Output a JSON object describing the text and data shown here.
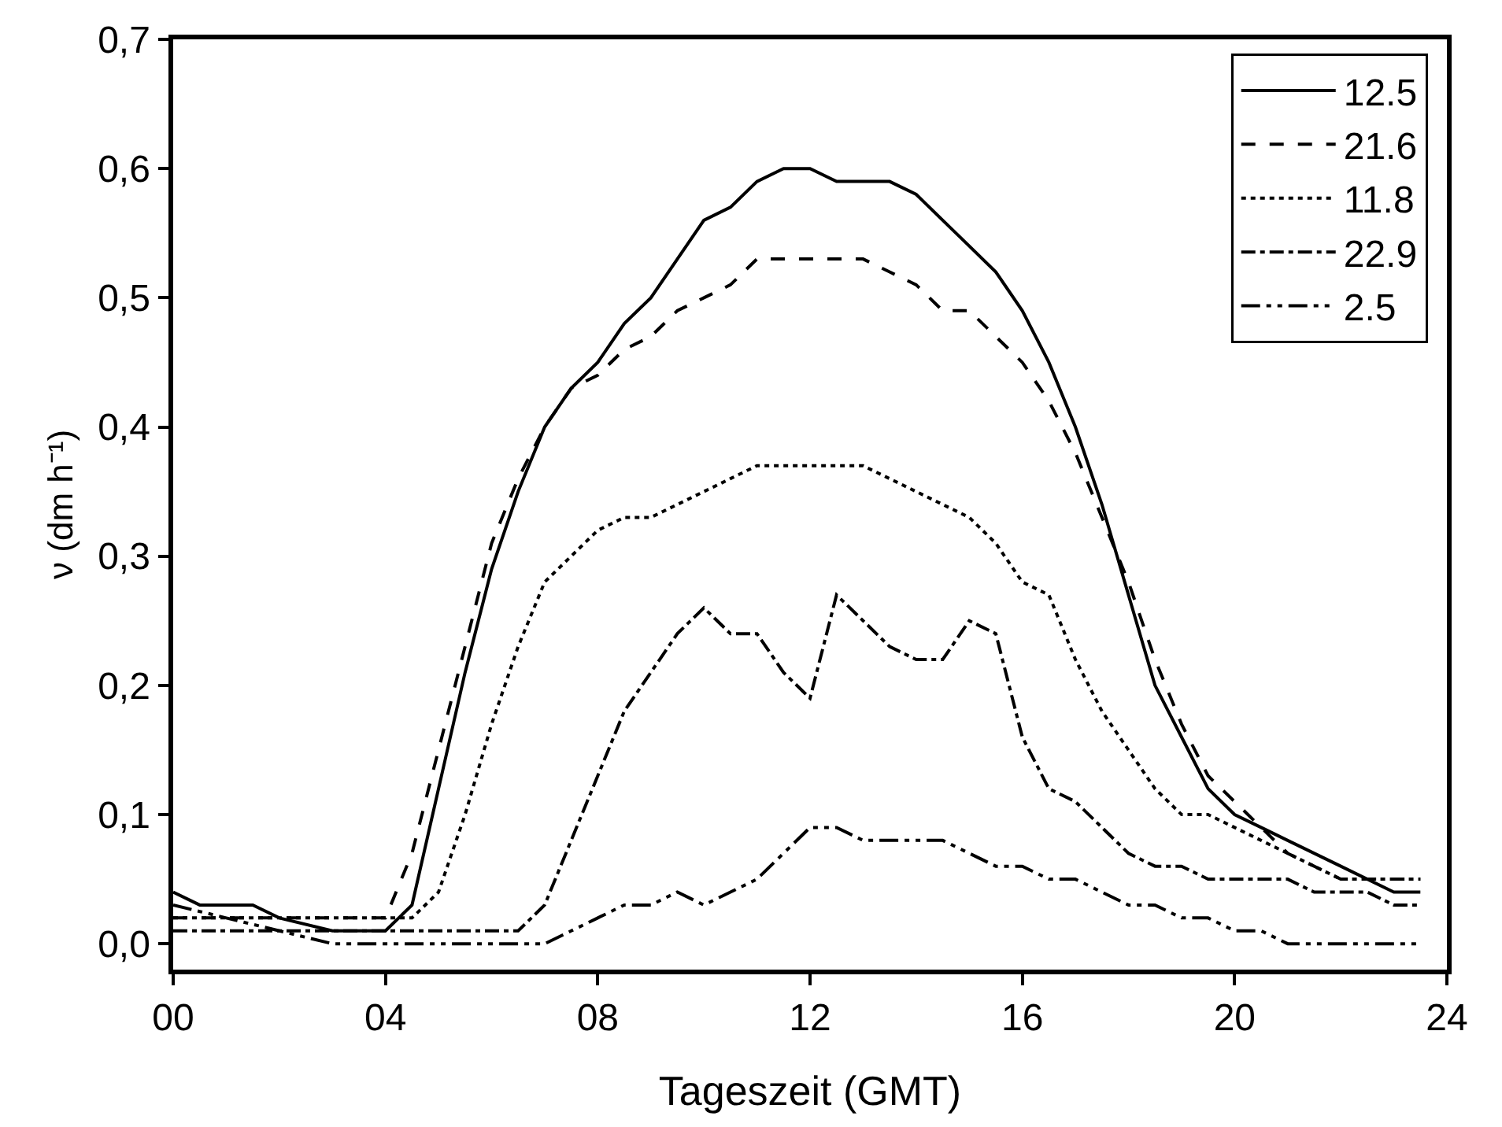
{
  "chart_data": {
    "type": "line",
    "xlabel": "Tageszeit (GMT)",
    "ylabel": "ν (dm h⁻¹)",
    "xlim": [
      0,
      24
    ],
    "ylim": [
      -0.02,
      0.7
    ],
    "xticks": [
      {
        "value": 0,
        "label": "00"
      },
      {
        "value": 4,
        "label": "04"
      },
      {
        "value": 8,
        "label": "08"
      },
      12,
      16,
      20,
      24
    ],
    "yticks": [
      {
        "value": 0,
        "label": "0,0"
      },
      {
        "value": 0.1,
        "label": "0,1"
      },
      {
        "value": 0.2,
        "label": "0,2"
      },
      {
        "value": 0.3,
        "label": "0,3"
      },
      {
        "value": 0.4,
        "label": "0,4"
      },
      {
        "value": 0.5,
        "label": "0,5"
      },
      {
        "value": 0.6,
        "label": "0,6"
      },
      {
        "value": 0.7,
        "label": "0,7"
      }
    ],
    "legend": "top right",
    "marker": "none",
    "series": [
      {
        "name": "12.5",
        "color": "#000000",
        "line_style": "solid",
        "x": [
          0,
          0.5,
          1.5,
          2,
          3,
          4,
          4.5,
          5,
          5.5,
          6,
          6.5,
          7,
          7.5,
          8,
          8.5,
          9,
          9.5,
          10,
          10.5,
          11,
          11.5,
          12,
          12.5,
          13,
          13.5,
          14,
          14.5,
          15,
          15.5,
          16,
          16.5,
          17,
          17.5,
          18,
          18.5,
          19,
          19.5,
          20,
          20.5,
          21,
          22,
          23,
          23.5
        ],
        "values": [
          0.04,
          0.03,
          0.03,
          0.02,
          0.01,
          0.01,
          0.03,
          0.12,
          0.21,
          0.29,
          0.35,
          0.4,
          0.43,
          0.45,
          0.48,
          0.5,
          0.53,
          0.56,
          0.57,
          0.59,
          0.6,
          0.6,
          0.59,
          0.59,
          0.59,
          0.58,
          0.56,
          0.54,
          0.52,
          0.49,
          0.45,
          0.4,
          0.34,
          0.27,
          0.2,
          0.16,
          0.12,
          0.1,
          0.09,
          0.08,
          0.06,
          0.04,
          0.04
        ]
      },
      {
        "name": "21.6",
        "color": "#000000",
        "line_style": "dashed",
        "x": [
          0,
          4,
          4.5,
          5,
          5.5,
          6,
          6.5,
          7,
          7.5,
          8,
          8.5,
          9,
          9.5,
          10,
          10.5,
          11,
          12,
          13,
          13.5,
          14,
          14.5,
          15,
          15.5,
          16,
          16.5,
          17,
          17.5,
          18,
          18.5,
          19,
          19.5,
          20,
          20.5,
          21,
          22,
          23,
          23.5
        ],
        "values": [
          0.02,
          0.02,
          0.07,
          0.15,
          0.23,
          0.31,
          0.36,
          0.4,
          0.43,
          0.44,
          0.46,
          0.47,
          0.49,
          0.5,
          0.51,
          0.53,
          0.53,
          0.53,
          0.52,
          0.51,
          0.49,
          0.49,
          0.47,
          0.45,
          0.42,
          0.38,
          0.33,
          0.28,
          0.22,
          0.17,
          0.13,
          0.11,
          0.09,
          0.07,
          0.05,
          0.05,
          0.05
        ]
      },
      {
        "name": "11.8",
        "color": "#000000",
        "line_style": "dotted",
        "x": [
          0,
          4.5,
          5,
          5.5,
          6,
          6.5,
          7,
          7.5,
          8,
          8.5,
          9,
          9.5,
          10,
          10.5,
          11,
          12,
          13,
          13.5,
          14,
          14.5,
          15,
          15.5,
          16,
          16.5,
          17,
          17.5,
          18,
          18.5,
          19,
          19.5,
          20,
          21,
          22,
          23.5
        ],
        "values": [
          0.02,
          0.02,
          0.04,
          0.1,
          0.17,
          0.23,
          0.28,
          0.3,
          0.32,
          0.33,
          0.33,
          0.34,
          0.35,
          0.36,
          0.37,
          0.37,
          0.37,
          0.36,
          0.35,
          0.34,
          0.33,
          0.31,
          0.28,
          0.27,
          0.22,
          0.18,
          0.15,
          0.12,
          0.1,
          0.1,
          0.09,
          0.07,
          0.05,
          0.05
        ]
      },
      {
        "name": "22.9",
        "color": "#000000",
        "line_style": "dashdot",
        "x": [
          0,
          6.5,
          7,
          7.5,
          8,
          8.5,
          9,
          9.5,
          10,
          10.5,
          11,
          11.5,
          12,
          12.5,
          13,
          13.5,
          14,
          14.5,
          15,
          15.5,
          16,
          16.5,
          17,
          17.5,
          18,
          18.5,
          19,
          19.5,
          20,
          21,
          21.5,
          22.5,
          23,
          23.5
        ],
        "values": [
          0.01,
          0.01,
          0.03,
          0.08,
          0.13,
          0.18,
          0.21,
          0.24,
          0.26,
          0.24,
          0.24,
          0.21,
          0.19,
          0.27,
          0.25,
          0.23,
          0.22,
          0.22,
          0.25,
          0.24,
          0.16,
          0.12,
          0.11,
          0.09,
          0.07,
          0.06,
          0.06,
          0.05,
          0.05,
          0.05,
          0.04,
          0.04,
          0.03,
          0.03
        ]
      },
      {
        "name": "2.5",
        "color": "#000000",
        "line_style": "dashdotdot",
        "x": [
          0,
          1,
          2,
          3,
          7,
          7.5,
          8,
          8.5,
          9,
          9.5,
          10,
          10.5,
          11,
          11.5,
          12,
          12.5,
          13,
          14,
          14.5,
          15,
          15.5,
          16,
          16.5,
          17,
          18,
          18.5,
          19,
          19.5,
          20,
          20.5,
          21,
          23.5
        ],
        "values": [
          0.03,
          0.02,
          0.01,
          0.0,
          0.0,
          0.01,
          0.02,
          0.03,
          0.03,
          0.04,
          0.03,
          0.04,
          0.05,
          0.07,
          0.09,
          0.09,
          0.08,
          0.08,
          0.08,
          0.07,
          0.06,
          0.06,
          0.05,
          0.05,
          0.03,
          0.03,
          0.02,
          0.02,
          0.01,
          0.01,
          0.0,
          0.0
        ]
      }
    ]
  }
}
